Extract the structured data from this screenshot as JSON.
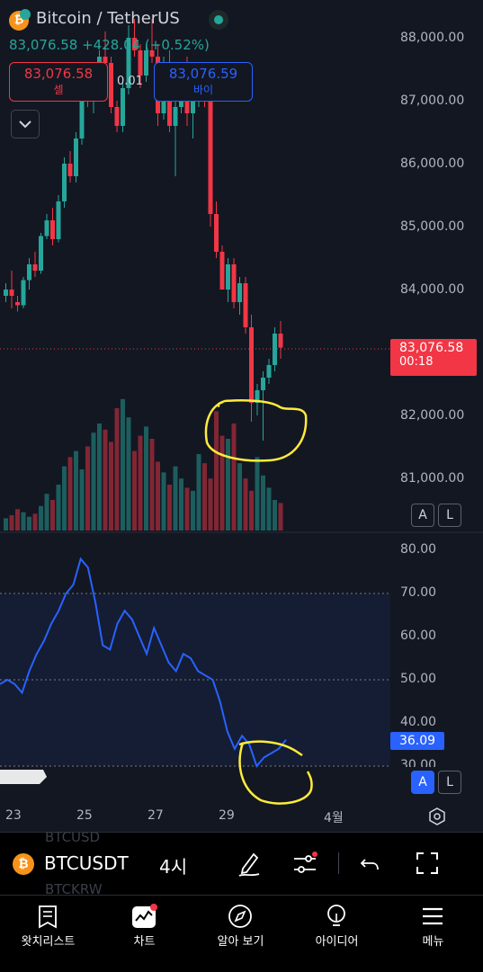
{
  "header": {
    "symbol_title": "Bitcoin / TetherUS",
    "price_change": "83,076.58 +428.04 (+0.52%)",
    "sell_price": "83,076.58",
    "sell_label": "셀",
    "spread": "0.01",
    "buy_price": "83,076.59",
    "buy_label": "바이"
  },
  "price_axis": {
    "labels": [
      "88,000.00",
      "87,000.00",
      "86,000.00",
      "85,000.00",
      "84,000.00",
      "82,000.00",
      "81,000.00"
    ],
    "current_price": "83,076.58",
    "countdown": "00:18",
    "current_price_color": "#f23645"
  },
  "rsi_axis": {
    "labels": [
      "80.00",
      "70.00",
      "60.00",
      "50.00",
      "40.00",
      "30.00"
    ],
    "current_value": "36.09"
  },
  "time_axis": {
    "labels": [
      "23",
      "25",
      "27",
      "29",
      "4월"
    ]
  },
  "scale_buttons": {
    "auto": "A",
    "log": "L"
  },
  "colors": {
    "up": "#26a69a",
    "down": "#f23645",
    "rsi_line": "#2962ff",
    "annotation": "#ffeb3b",
    "active": "#2962ff"
  },
  "watermark": [
    "BTCUSD",
    "BTCKRW"
  ],
  "toolbar": {
    "symbol": "BTCUSDT",
    "interval": "4시",
    "icons": [
      "bitcoin-icon",
      "pen-icon",
      "indicators-icon",
      "undo-icon",
      "fullscreen-icon"
    ]
  },
  "nav": {
    "items": [
      {
        "label": "왓치리스트",
        "icon": "watchlist-icon"
      },
      {
        "label": "차트",
        "icon": "chart-icon"
      },
      {
        "label": "알아 보기",
        "icon": "compass-icon"
      },
      {
        "label": "아이디어",
        "icon": "lightbulb-icon"
      },
      {
        "label": "메뉴",
        "icon": "menu-icon"
      }
    ]
  },
  "chart_data": {
    "type": "candlestick",
    "price_range": [
      80500,
      88400
    ],
    "candles": [
      [
        83900,
        84100,
        83800,
        84000
      ],
      [
        84000,
        84300,
        83700,
        83900
      ],
      [
        83800,
        83900,
        83650,
        83750
      ],
      [
        83750,
        84200,
        83700,
        84150
      ],
      [
        84150,
        84500,
        84000,
        84400
      ],
      [
        84400,
        84600,
        84200,
        84300
      ],
      [
        84300,
        84900,
        84250,
        84850
      ],
      [
        84850,
        85200,
        84800,
        85100
      ],
      [
        85100,
        85300,
        84700,
        84800
      ],
      [
        84800,
        85500,
        84750,
        85400
      ],
      [
        85400,
        86100,
        85300,
        86000
      ],
      [
        86000,
        86200,
        85700,
        85800
      ],
      [
        85800,
        86500,
        85700,
        86400
      ],
      [
        86400,
        87200,
        86300,
        87100
      ],
      [
        87100,
        87600,
        86900,
        87000
      ],
      [
        87000,
        87500,
        86800,
        87300
      ],
      [
        87300,
        87800,
        87100,
        87700
      ],
      [
        87700,
        88100,
        87500,
        87600
      ],
      [
        87600,
        87700,
        86800,
        86900
      ],
      [
        86900,
        87000,
        86500,
        86600
      ],
      [
        86600,
        87300,
        86500,
        87200
      ],
      [
        87200,
        88200,
        87100,
        88000
      ],
      [
        88000,
        88300,
        87700,
        87800
      ],
      [
        87800,
        87900,
        87200,
        87400
      ],
      [
        87400,
        87900,
        87300,
        87800
      ],
      [
        87800,
        88300,
        87600,
        87700
      ],
      [
        87700,
        87900,
        86600,
        86800
      ],
      [
        86800,
        87700,
        86700,
        87500
      ],
      [
        87500,
        87800,
        86500,
        86600
      ],
      [
        86600,
        87000,
        85800,
        86900
      ],
      [
        86900,
        87600,
        86800,
        87500
      ],
      [
        87500,
        87700,
        86600,
        86800
      ],
      [
        86800,
        87100,
        86400,
        87000
      ],
      [
        87000,
        87400,
        86900,
        87300
      ],
      [
        87300,
        87500,
        86900,
        87100
      ],
      [
        87100,
        87200,
        85000,
        85200
      ],
      [
        85200,
        85400,
        84500,
        84600
      ],
      [
        84600,
        84700,
        84000,
        84000
      ],
      [
        84000,
        84500,
        83800,
        84400
      ],
      [
        84400,
        84500,
        83700,
        83800
      ],
      [
        83800,
        84200,
        83600,
        84100
      ],
      [
        84100,
        84200,
        83300,
        83400
      ],
      [
        83400,
        83600,
        81900,
        82200
      ],
      [
        82200,
        82500,
        82000,
        82400
      ],
      [
        82400,
        82700,
        81600,
        82600
      ],
      [
        82600,
        82900,
        82500,
        82800
      ],
      [
        82800,
        83400,
        82700,
        83300
      ],
      [
        83300,
        83500,
        82900,
        83077
      ]
    ],
    "volume": [
      8,
      10,
      14,
      12,
      9,
      11,
      16,
      24,
      20,
      30,
      42,
      48,
      52,
      40,
      55,
      64,
      70,
      66,
      58,
      80,
      86,
      74,
      52,
      62,
      68,
      60,
      45,
      38,
      30,
      42,
      34,
      28,
      26,
      50,
      44,
      34,
      78,
      62,
      60,
      70,
      44,
      34,
      26,
      48,
      36,
      28,
      20,
      18
    ],
    "rsi": {
      "range": [
        25,
        83
      ],
      "levels": [
        70,
        50,
        30
      ],
      "values": [
        49,
        50,
        49,
        47,
        52,
        56,
        59,
        63,
        66,
        70,
        72,
        78,
        76,
        68,
        58,
        57,
        63,
        66,
        64,
        60,
        56,
        62,
        58,
        54,
        52,
        56,
        55,
        52,
        51,
        50,
        45,
        38,
        34,
        37,
        35,
        30,
        32,
        33,
        34,
        36.09
      ]
    }
  }
}
